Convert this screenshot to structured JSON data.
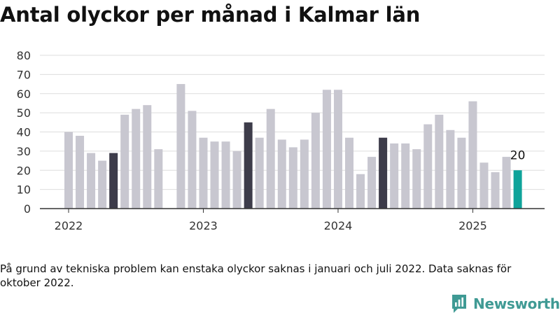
{
  "header": {
    "title": "Antal olyckor per månad i Kalmar län"
  },
  "footer": {
    "note": "På grund av tekniska problem kan enstaka olyckor saknas i januari och juli 2022. Data saknas för oktober 2022.",
    "brand": "Newsworthy",
    "brand_color": "#3f9a94"
  },
  "chart_data": {
    "type": "bar",
    "title": "Antal olyckor per månad i Kalmar län",
    "xlabel": "",
    "ylabel": "",
    "ylim": [
      0,
      80
    ],
    "yticks": [
      0,
      10,
      20,
      30,
      40,
      50,
      60,
      70,
      80
    ],
    "xtick_labels": [
      {
        "label": "2022",
        "at": "2022-01"
      },
      {
        "label": "2023",
        "at": "2023-01"
      },
      {
        "label": "2024",
        "at": "2024-01"
      },
      {
        "label": "2025",
        "at": "2025-01"
      }
    ],
    "grid": true,
    "colors": {
      "default": "#c8c7d0",
      "highlight": "#3d3c4a",
      "latest": "#0fa39a",
      "grid": "#dddddd",
      "axis": "#333333"
    },
    "latest_label": "20",
    "months": [
      "2022-01",
      "2022-02",
      "2022-03",
      "2022-04",
      "2022-05",
      "2022-06",
      "2022-07",
      "2022-08",
      "2022-09",
      "2022-10",
      "2022-11",
      "2022-12",
      "2023-01",
      "2023-02",
      "2023-03",
      "2023-04",
      "2023-05",
      "2023-06",
      "2023-07",
      "2023-08",
      "2023-09",
      "2023-10",
      "2023-11",
      "2023-12",
      "2024-01",
      "2024-02",
      "2024-03",
      "2024-04",
      "2024-05",
      "2024-06",
      "2024-07",
      "2024-08",
      "2024-09",
      "2024-10",
      "2024-11",
      "2024-12",
      "2025-01",
      "2025-02",
      "2025-03",
      "2025-04",
      "2025-05"
    ],
    "values": [
      40,
      38,
      29,
      25,
      29,
      49,
      52,
      54,
      31,
      null,
      65,
      51,
      37,
      35,
      35,
      30,
      45,
      37,
      52,
      36,
      32,
      36,
      50,
      62,
      62,
      37,
      18,
      27,
      37,
      34,
      34,
      31,
      44,
      49,
      41,
      37,
      56,
      24,
      19,
      27,
      20
    ],
    "highlight_months": [
      "2022-05",
      "2023-05",
      "2024-05"
    ],
    "latest_month": "2025-05"
  }
}
